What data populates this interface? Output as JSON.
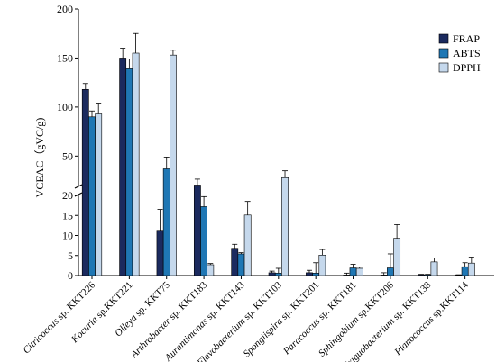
{
  "chart_data": {
    "type": "bar",
    "ylabel": "VCEAC（gVC/g)",
    "axis_break": {
      "lower": [
        0,
        20
      ],
      "upper": [
        20,
        200
      ]
    },
    "yticks_upper": [
      50,
      100,
      150,
      200
    ],
    "yticks_lower": [
      0,
      5,
      10,
      15,
      20
    ],
    "legend_position": "top-right",
    "categories": [
      {
        "genus": "Citricoccus",
        "rest": " sp. KKT226"
      },
      {
        "genus": "Kocuria",
        "rest": " sp.KKT221"
      },
      {
        "genus": "Olleya",
        "rest": " sp. KKT75"
      },
      {
        "genus": "Arthrobacter",
        "rest": " sp. KKT183"
      },
      {
        "genus": "Aurantimonas",
        "rest": " sp. KKT143"
      },
      {
        "genus": "Flavobacterium",
        "rest": " sp. KKT103"
      },
      {
        "genus": "Spongiispira",
        "rest": " sp. KKT201"
      },
      {
        "genus": "Paracoccus",
        "rest": " sp. KKT181"
      },
      {
        "genus": "Sphingobium",
        "rest": " sp.KKT206"
      },
      {
        "genus": "Exiguobacterium",
        "rest": " sp. KKT138"
      },
      {
        "genus": "Planococcus",
        "rest": " sp.KKT114"
      }
    ],
    "series": [
      {
        "name": "FRAP",
        "color": "#1b2a5e",
        "values": [
          118,
          150,
          11.3,
          20.5,
          6.8,
          0.7,
          0.7,
          0.1,
          0.1,
          0.2,
          0.1
        ],
        "errors": [
          6,
          10,
          5.2,
          6,
          1,
          0.4,
          0.6,
          0.5,
          0.6,
          0.1,
          0.1
        ]
      },
      {
        "name": "ABTS",
        "color": "#1f77b4",
        "values": [
          90,
          139,
          37,
          17.2,
          5.4,
          0.6,
          0.6,
          1.9,
          1.9,
          0.2,
          2.2
        ],
        "errors": [
          6,
          10,
          12,
          2.5,
          0.3,
          1.2,
          2.6,
          0.9,
          3.5,
          0.1,
          1
        ]
      },
      {
        "name": "DPPH",
        "color": "#c5d8ec",
        "values": [
          93,
          155,
          153,
          2.7,
          15.1,
          28,
          5.1,
          1.8,
          9.3,
          3.4,
          3.1
        ],
        "errors": [
          11,
          20,
          5,
          0.3,
          3.4,
          7,
          1.4,
          0.3,
          3.4,
          1,
          1.5
        ]
      }
    ]
  }
}
